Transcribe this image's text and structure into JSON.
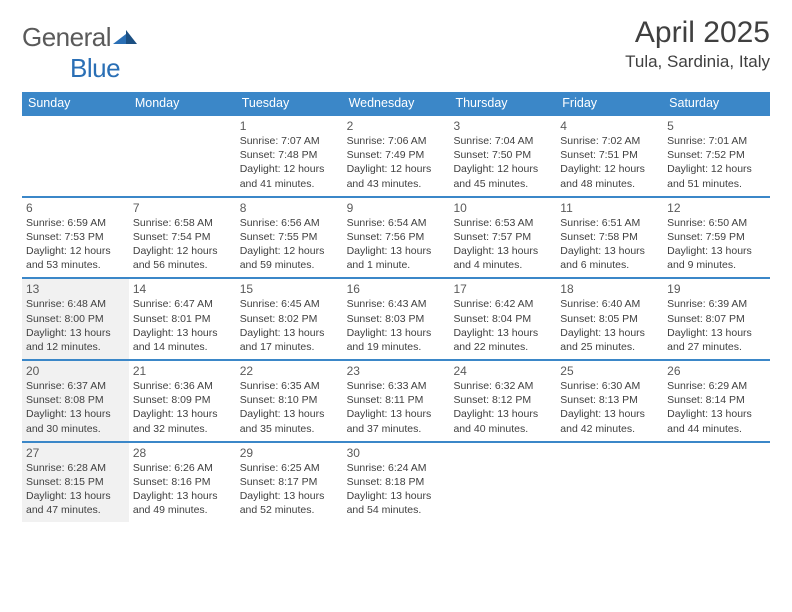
{
  "logo": {
    "text1": "General",
    "text2": "Blue"
  },
  "title": "April 2025",
  "location": "Tula, Sardinia, Italy",
  "colors": {
    "header_bg": "#3b87c8",
    "header_text": "#ffffff",
    "rule": "#3b87c8",
    "body_text": "#404040",
    "daynum_text": "#5a5a5a",
    "shaded_bg": "#f1f1f1",
    "logo_gray": "#5a5a5a",
    "logo_blue": "#2a6fb5"
  },
  "weekdays": [
    "Sunday",
    "Monday",
    "Tuesday",
    "Wednesday",
    "Thursday",
    "Friday",
    "Saturday"
  ],
  "weeks": [
    [
      {
        "n": "",
        "sr": "",
        "ss": "",
        "dl": "",
        "shaded": false
      },
      {
        "n": "",
        "sr": "",
        "ss": "",
        "dl": "",
        "shaded": false
      },
      {
        "n": "1",
        "sr": "Sunrise: 7:07 AM",
        "ss": "Sunset: 7:48 PM",
        "dl": "Daylight: 12 hours and 41 minutes.",
        "shaded": false
      },
      {
        "n": "2",
        "sr": "Sunrise: 7:06 AM",
        "ss": "Sunset: 7:49 PM",
        "dl": "Daylight: 12 hours and 43 minutes.",
        "shaded": false
      },
      {
        "n": "3",
        "sr": "Sunrise: 7:04 AM",
        "ss": "Sunset: 7:50 PM",
        "dl": "Daylight: 12 hours and 45 minutes.",
        "shaded": false
      },
      {
        "n": "4",
        "sr": "Sunrise: 7:02 AM",
        "ss": "Sunset: 7:51 PM",
        "dl": "Daylight: 12 hours and 48 minutes.",
        "shaded": false
      },
      {
        "n": "5",
        "sr": "Sunrise: 7:01 AM",
        "ss": "Sunset: 7:52 PM",
        "dl": "Daylight: 12 hours and 51 minutes.",
        "shaded": false
      }
    ],
    [
      {
        "n": "6",
        "sr": "Sunrise: 6:59 AM",
        "ss": "Sunset: 7:53 PM",
        "dl": "Daylight: 12 hours and 53 minutes.",
        "shaded": false
      },
      {
        "n": "7",
        "sr": "Sunrise: 6:58 AM",
        "ss": "Sunset: 7:54 PM",
        "dl": "Daylight: 12 hours and 56 minutes.",
        "shaded": false
      },
      {
        "n": "8",
        "sr": "Sunrise: 6:56 AM",
        "ss": "Sunset: 7:55 PM",
        "dl": "Daylight: 12 hours and 59 minutes.",
        "shaded": false
      },
      {
        "n": "9",
        "sr": "Sunrise: 6:54 AM",
        "ss": "Sunset: 7:56 PM",
        "dl": "Daylight: 13 hours and 1 minute.",
        "shaded": false
      },
      {
        "n": "10",
        "sr": "Sunrise: 6:53 AM",
        "ss": "Sunset: 7:57 PM",
        "dl": "Daylight: 13 hours and 4 minutes.",
        "shaded": false
      },
      {
        "n": "11",
        "sr": "Sunrise: 6:51 AM",
        "ss": "Sunset: 7:58 PM",
        "dl": "Daylight: 13 hours and 6 minutes.",
        "shaded": false
      },
      {
        "n": "12",
        "sr": "Sunrise: 6:50 AM",
        "ss": "Sunset: 7:59 PM",
        "dl": "Daylight: 13 hours and 9 minutes.",
        "shaded": false
      }
    ],
    [
      {
        "n": "13",
        "sr": "Sunrise: 6:48 AM",
        "ss": "Sunset: 8:00 PM",
        "dl": "Daylight: 13 hours and 12 minutes.",
        "shaded": true
      },
      {
        "n": "14",
        "sr": "Sunrise: 6:47 AM",
        "ss": "Sunset: 8:01 PM",
        "dl": "Daylight: 13 hours and 14 minutes.",
        "shaded": false
      },
      {
        "n": "15",
        "sr": "Sunrise: 6:45 AM",
        "ss": "Sunset: 8:02 PM",
        "dl": "Daylight: 13 hours and 17 minutes.",
        "shaded": false
      },
      {
        "n": "16",
        "sr": "Sunrise: 6:43 AM",
        "ss": "Sunset: 8:03 PM",
        "dl": "Daylight: 13 hours and 19 minutes.",
        "shaded": false
      },
      {
        "n": "17",
        "sr": "Sunrise: 6:42 AM",
        "ss": "Sunset: 8:04 PM",
        "dl": "Daylight: 13 hours and 22 minutes.",
        "shaded": false
      },
      {
        "n": "18",
        "sr": "Sunrise: 6:40 AM",
        "ss": "Sunset: 8:05 PM",
        "dl": "Daylight: 13 hours and 25 minutes.",
        "shaded": false
      },
      {
        "n": "19",
        "sr": "Sunrise: 6:39 AM",
        "ss": "Sunset: 8:07 PM",
        "dl": "Daylight: 13 hours and 27 minutes.",
        "shaded": false
      }
    ],
    [
      {
        "n": "20",
        "sr": "Sunrise: 6:37 AM",
        "ss": "Sunset: 8:08 PM",
        "dl": "Daylight: 13 hours and 30 minutes.",
        "shaded": true
      },
      {
        "n": "21",
        "sr": "Sunrise: 6:36 AM",
        "ss": "Sunset: 8:09 PM",
        "dl": "Daylight: 13 hours and 32 minutes.",
        "shaded": false
      },
      {
        "n": "22",
        "sr": "Sunrise: 6:35 AM",
        "ss": "Sunset: 8:10 PM",
        "dl": "Daylight: 13 hours and 35 minutes.",
        "shaded": false
      },
      {
        "n": "23",
        "sr": "Sunrise: 6:33 AM",
        "ss": "Sunset: 8:11 PM",
        "dl": "Daylight: 13 hours and 37 minutes.",
        "shaded": false
      },
      {
        "n": "24",
        "sr": "Sunrise: 6:32 AM",
        "ss": "Sunset: 8:12 PM",
        "dl": "Daylight: 13 hours and 40 minutes.",
        "shaded": false
      },
      {
        "n": "25",
        "sr": "Sunrise: 6:30 AM",
        "ss": "Sunset: 8:13 PM",
        "dl": "Daylight: 13 hours and 42 minutes.",
        "shaded": false
      },
      {
        "n": "26",
        "sr": "Sunrise: 6:29 AM",
        "ss": "Sunset: 8:14 PM",
        "dl": "Daylight: 13 hours and 44 minutes.",
        "shaded": false
      }
    ],
    [
      {
        "n": "27",
        "sr": "Sunrise: 6:28 AM",
        "ss": "Sunset: 8:15 PM",
        "dl": "Daylight: 13 hours and 47 minutes.",
        "shaded": true
      },
      {
        "n": "28",
        "sr": "Sunrise: 6:26 AM",
        "ss": "Sunset: 8:16 PM",
        "dl": "Daylight: 13 hours and 49 minutes.",
        "shaded": false
      },
      {
        "n": "29",
        "sr": "Sunrise: 6:25 AM",
        "ss": "Sunset: 8:17 PM",
        "dl": "Daylight: 13 hours and 52 minutes.",
        "shaded": false
      },
      {
        "n": "30",
        "sr": "Sunrise: 6:24 AM",
        "ss": "Sunset: 8:18 PM",
        "dl": "Daylight: 13 hours and 54 minutes.",
        "shaded": false
      },
      {
        "n": "",
        "sr": "",
        "ss": "",
        "dl": "",
        "shaded": false
      },
      {
        "n": "",
        "sr": "",
        "ss": "",
        "dl": "",
        "shaded": false
      },
      {
        "n": "",
        "sr": "",
        "ss": "",
        "dl": "",
        "shaded": false
      }
    ]
  ]
}
